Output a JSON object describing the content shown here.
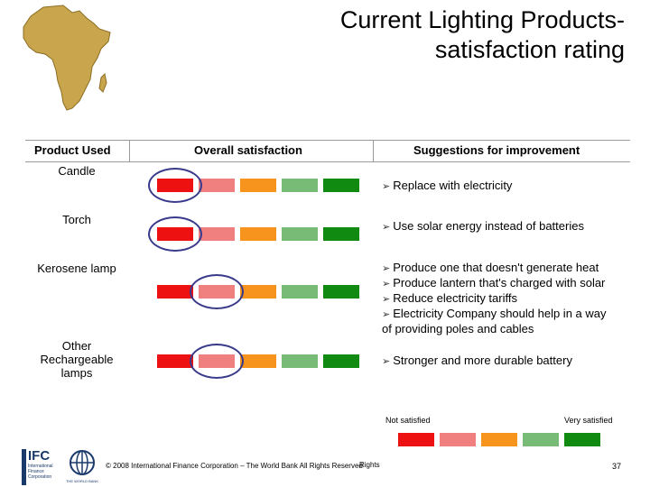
{
  "title": {
    "line1": "Current Lighting Products-",
    "line2": "satisfaction rating"
  },
  "headers": {
    "product": "Product Used",
    "overall": "Overall satisfaction",
    "suggestions": "Suggestions for improvement"
  },
  "scale_colors": [
    "#ee1111",
    "#f08080",
    "#f7941d",
    "#77bb77",
    "#108a10"
  ],
  "rows": [
    {
      "product": "Candle",
      "selected_index": 0,
      "suggestions": [
        "Replace with electricity"
      ],
      "trailing": ""
    },
    {
      "product": "Torch",
      "selected_index": 0,
      "suggestions": [
        "Use solar energy instead of batteries"
      ],
      "trailing": ""
    },
    {
      "product": "Kerosene lamp",
      "selected_index": 1,
      "suggestions": [
        "Produce one that doesn't generate heat",
        "Produce lantern that's charged with solar",
        "Reduce electricity tariffs",
        "Electricity Company should help in a way"
      ],
      "trailing": "of providing poles and cables"
    },
    {
      "product_lines": [
        "Other",
        "Rechargeable",
        "lamps"
      ],
      "selected_index": 1,
      "suggestions": [
        "Stronger and more durable battery"
      ],
      "trailing": ""
    }
  ],
  "legend": {
    "low": "Not satisfied",
    "high": "Very satisfied"
  },
  "footer": {
    "copyright": "© 2008 International Finance Corporation – The World Bank All Rights Reserved",
    "overlap_text": "Rights",
    "page": "37"
  },
  "logos": {
    "ifc_text": "IFC",
    "ifc_sub": "International Finance Corporation",
    "wb_text": "THE WORLD BANK"
  },
  "icons": {
    "bullet": "arrow-bullet-icon",
    "map": "africa-map-icon"
  }
}
